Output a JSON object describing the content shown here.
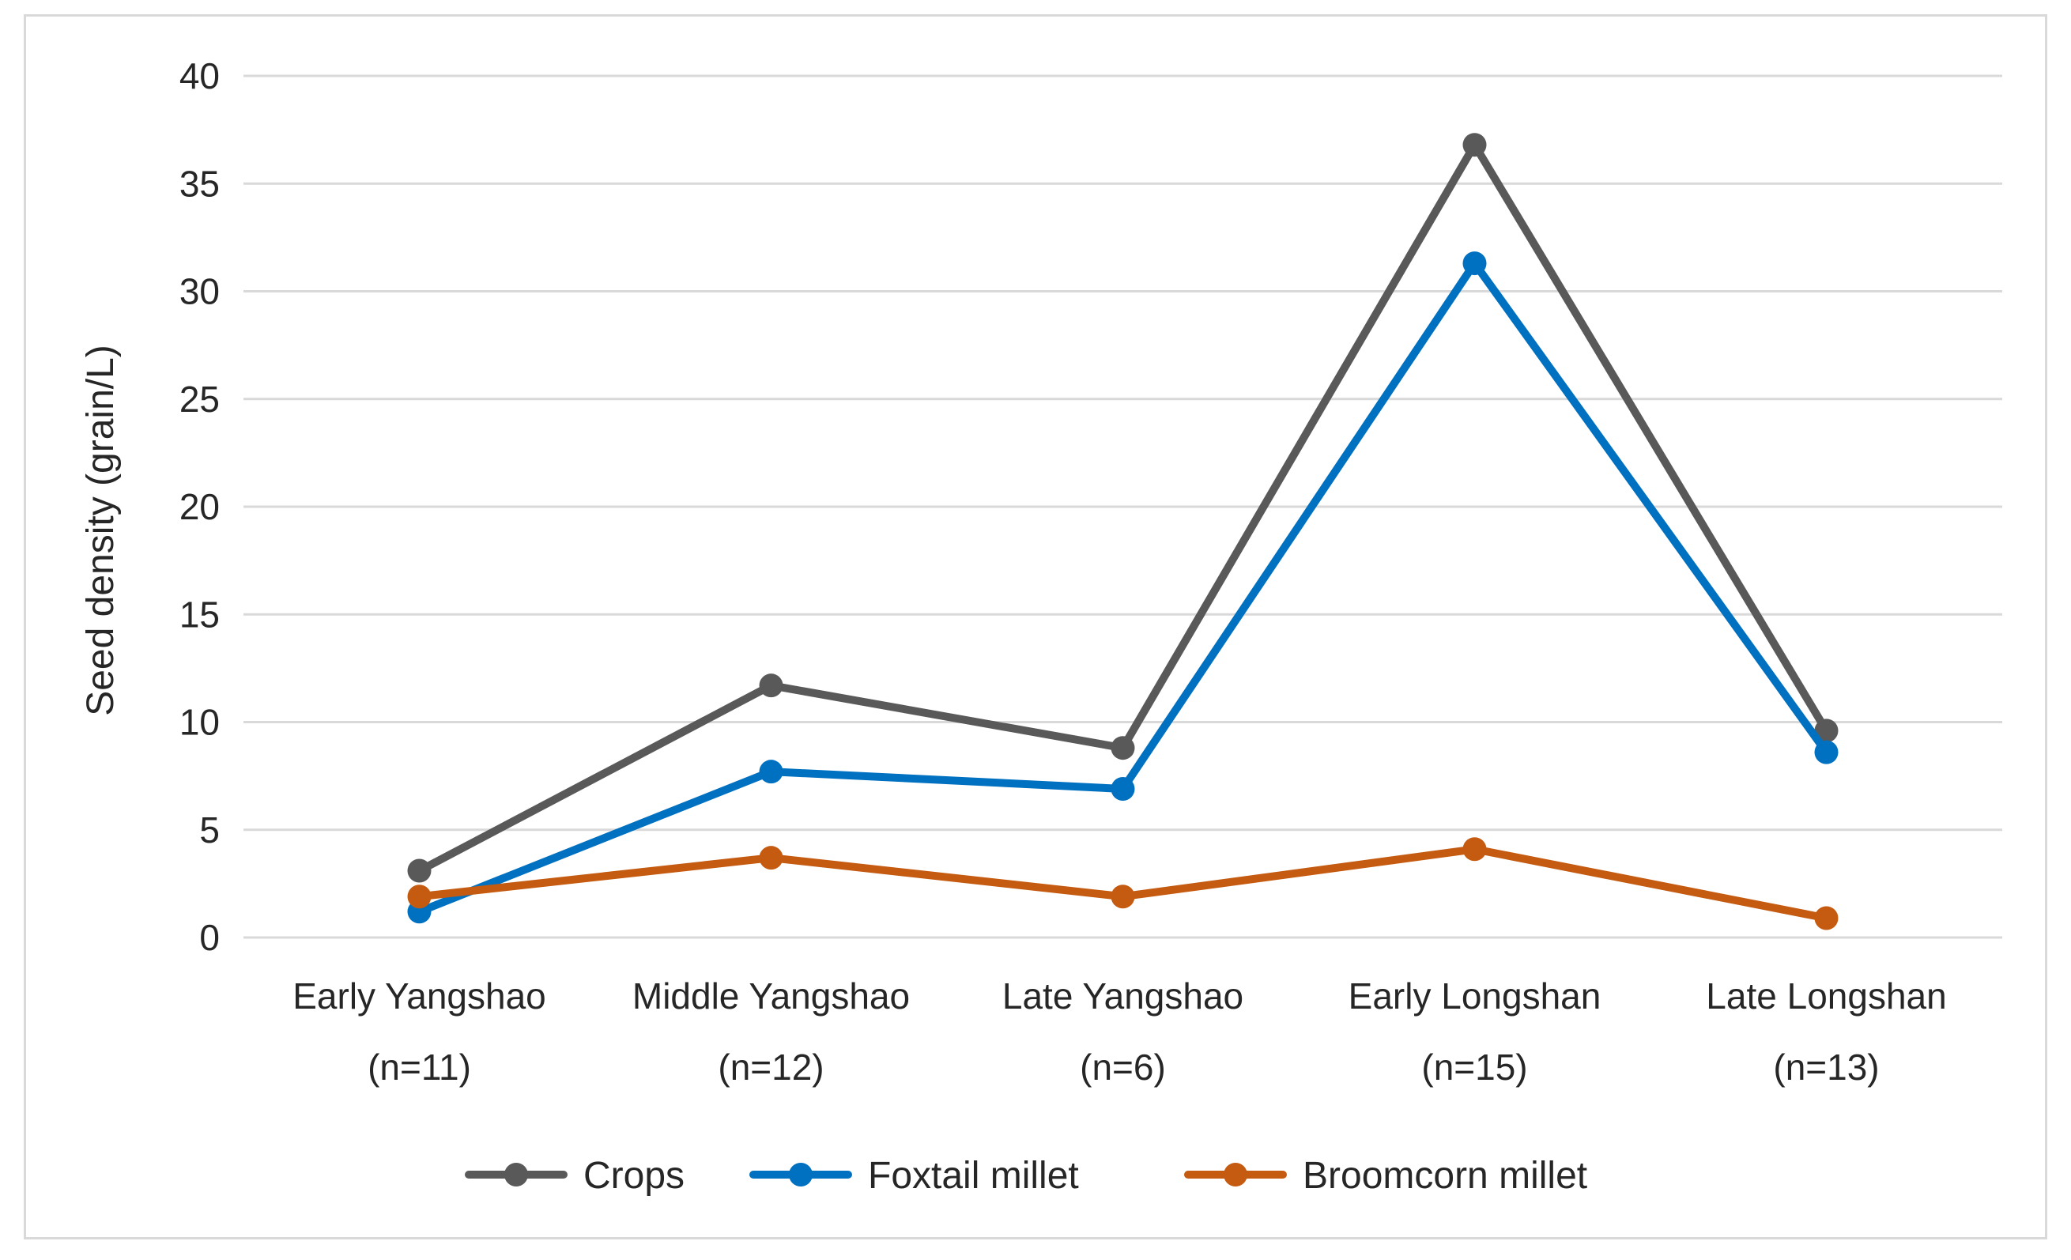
{
  "chart_data": {
    "type": "line",
    "title": "",
    "xlabel": "",
    "ylabel": "Seed density (grain/L)",
    "ylim": [
      0,
      40
    ],
    "yticks": [
      0,
      5,
      10,
      15,
      20,
      25,
      30,
      35,
      40
    ],
    "grid": true,
    "legend_position": "bottom",
    "categories": [
      [
        "Early Yangshao",
        "(n=11)"
      ],
      [
        "Middle Yangshao",
        "(n=12)"
      ],
      [
        "Late Yangshao",
        "(n=6)"
      ],
      [
        "Early Longshan",
        "(n=15)"
      ],
      [
        "Late Longshan",
        "(n=13)"
      ]
    ],
    "series": [
      {
        "name": "Crops",
        "color": "#595959",
        "values": [
          3.1,
          11.7,
          8.8,
          36.8,
          9.6
        ]
      },
      {
        "name": "Foxtail millet",
        "color": "#0070c0",
        "values": [
          1.2,
          7.7,
          6.9,
          31.3,
          8.6
        ]
      },
      {
        "name": "Broomcorn millet",
        "color": "#c55a11",
        "values": [
          1.9,
          3.7,
          1.9,
          4.1,
          0.9
        ]
      }
    ]
  }
}
